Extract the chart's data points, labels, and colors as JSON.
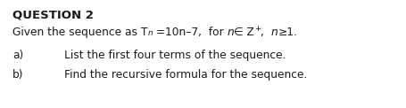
{
  "title": "QUESTION 2",
  "part_a_label": "a)",
  "part_a_text": "List the first four terms of the sequence.",
  "part_b_label": "b)",
  "part_b_text": "Find the recursive formula for the sequence.",
  "bg_color": "#ffffff",
  "text_color": "#1a1a1a",
  "font_size_title": 9.5,
  "font_size_body": 8.8,
  "fig_width": 4.56,
  "fig_height": 1.22,
  "dpi": 100
}
